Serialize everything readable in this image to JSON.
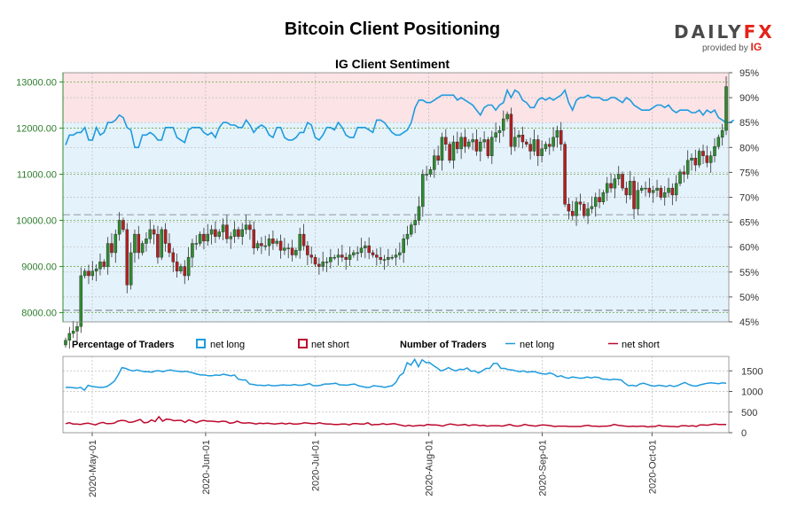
{
  "title": "Bitcoin Client Positioning",
  "brand": {
    "name_a": "DAILY",
    "name_b": "FX",
    "sub": "provided by",
    "sub_mark": "IG"
  },
  "chart_data": [
    {
      "type": "candlestick",
      "title": "IG Client Sentiment",
      "ylim": [
        7800,
        13200
      ],
      "y_ticks": [
        "8000.00",
        "9000.00",
        "10000.00",
        "11000.00",
        "12000.00",
        "13000.00"
      ],
      "y_tick_values": [
        8000,
        9000,
        10000,
        11000,
        12000,
        13000
      ],
      "y2lim": [
        45,
        95
      ],
      "y2_ticks": [
        "45%",
        "50%",
        "55%",
        "60%",
        "65%",
        "70%",
        "75%",
        "80%",
        "85%",
        "90%",
        "95%"
      ],
      "y2_tick_values": [
        45,
        50,
        55,
        60,
        65,
        70,
        75,
        80,
        85,
        90,
        95
      ],
      "date_range": [
        "2020-04-23",
        "2020-10-22"
      ],
      "close": [
        7400,
        7550,
        7600,
        7700,
        8800,
        8900,
        8800,
        8900,
        8950,
        9100,
        9000,
        9500,
        9300,
        9700,
        10000,
        9800,
        8600,
        9300,
        9700,
        9300,
        9500,
        9600,
        9800,
        9700,
        9200,
        9800,
        9500,
        9300,
        9100,
        8900,
        9000,
        8800,
        9200,
        9500,
        9500,
        9700,
        9550,
        9700,
        9800,
        9650,
        9750,
        9900,
        9600,
        9650,
        9800,
        9650,
        9800,
        9900,
        9800,
        9400,
        9500,
        9450,
        9450,
        9600,
        9500,
        9550,
        9350,
        9400,
        9400,
        9250,
        9350,
        9700,
        9450,
        9250,
        9200,
        9050,
        9000,
        9100,
        9100,
        9200,
        9200,
        9250,
        9200,
        9150,
        9250,
        9300,
        9300,
        9400,
        9450,
        9300,
        9250,
        9200,
        9150,
        9150,
        9200,
        9200,
        9250,
        9300,
        9600,
        9700,
        9900,
        10000,
        10300,
        11000,
        11000,
        11100,
        11400,
        11300,
        11800,
        11650,
        11300,
        11700,
        11550,
        11800,
        11600,
        11700,
        11750,
        11500,
        11700,
        11750,
        11400,
        11800,
        11900,
        11950,
        12200,
        12300,
        11600,
        11800,
        11850,
        11700,
        11650,
        11500,
        11750,
        11400,
        11550,
        11650,
        11600,
        11800,
        11950,
        11650,
        10350,
        10200,
        10100,
        10400,
        10350,
        10100,
        10250,
        10300,
        10500,
        10400,
        10600,
        10800,
        10700,
        10900,
        11000,
        10700,
        10550,
        10850,
        10250,
        10650,
        10700,
        10700,
        10600,
        10650,
        10700,
        10500,
        10600,
        10700,
        10550,
        10800,
        11050,
        11000,
        11300,
        11350,
        11200,
        11500,
        11400,
        11250,
        11400,
        11600,
        11800,
        11950,
        12900
      ],
      "net_long_pct": [
        80.5,
        82.5,
        82.5,
        83,
        83,
        84,
        81.5,
        81.5,
        84,
        82.5,
        83,
        85,
        85,
        85.5,
        86.5,
        86,
        84,
        83.5,
        80,
        80,
        82.5,
        82.5,
        83,
        82.5,
        81.5,
        81.5,
        84,
        84,
        84,
        82,
        81.5,
        81,
        83.5,
        84,
        84,
        84,
        83,
        82.5,
        83,
        82,
        84,
        85,
        85,
        84.5,
        84.5,
        84,
        84,
        85.5,
        84.5,
        83,
        84,
        84.5,
        84,
        82.5,
        82,
        84,
        84,
        82,
        81.5,
        81.5,
        82,
        83,
        83,
        85,
        84.5,
        82,
        81.5,
        82.5,
        84,
        84,
        83.5,
        85,
        84,
        82.5,
        82,
        82,
        84,
        84,
        84,
        83.5,
        83,
        85.5,
        85.5,
        85,
        84,
        83,
        82.5,
        82.5,
        83,
        83.5,
        85,
        88,
        89.5,
        89.5,
        89,
        89,
        89.5,
        90,
        90.5,
        90.5,
        90.5,
        90.5,
        89.5,
        90,
        89.5,
        89,
        88.5,
        87.5,
        86.5,
        88,
        88.5,
        88.5,
        87.5,
        88.5,
        89,
        91.5,
        90,
        91.5,
        91,
        89.5,
        89,
        88,
        88,
        89.5,
        90,
        89.5,
        90,
        89.5,
        90,
        90.5,
        91.5,
        89,
        87.5,
        89.5,
        90,
        90,
        90.5,
        90,
        90,
        90,
        89.5,
        89.5,
        90,
        90,
        89.5,
        89,
        90,
        89.5,
        88.5,
        88,
        87.5,
        87.5,
        87.5,
        88,
        88.5,
        88.5,
        88,
        88.5,
        87.5,
        87,
        87.5,
        87.5,
        87.5,
        87,
        87,
        87.5,
        86.5,
        87.5,
        87,
        87.5,
        86,
        85.5,
        85,
        85,
        85.5
      ],
      "annotations": {
        "dashed_line_pct": 66.5,
        "dashed_line_price": 8050,
        "shading_split_pct": 85
      }
    },
    {
      "type": "line",
      "legend_left_title": "Percentage of Traders",
      "legend_right_title": "Number of Traders",
      "legend_labels": [
        "net long",
        "net short",
        "net long",
        "net short"
      ],
      "ylim": [
        0,
        1850
      ],
      "y_ticks": [
        "0",
        "500",
        "1000",
        "1500"
      ],
      "y_tick_values": [
        0,
        500,
        1000,
        1500
      ],
      "x_ticks": [
        "2020-May-01",
        "2020-Jun-01",
        "2020-Jul-01",
        "2020-Aug-01",
        "2020-Sep-01",
        "2020-Oct-01"
      ],
      "x_tick_dates": [
        "2020-05-01",
        "2020-06-01",
        "2020-07-01",
        "2020-08-01",
        "2020-09-01",
        "2020-10-01"
      ],
      "series": [
        {
          "name": "net long",
          "color": "#1f9bde",
          "values": [
            1100,
            1100,
            1090,
            1080,
            1100,
            1030,
            1150,
            1120,
            1110,
            1100,
            1100,
            1120,
            1180,
            1250,
            1400,
            1580,
            1560,
            1520,
            1500,
            1520,
            1500,
            1480,
            1480,
            1470,
            1500,
            1500,
            1480,
            1510,
            1520,
            1500,
            1490,
            1480,
            1490,
            1470,
            1450,
            1420,
            1400,
            1400,
            1380,
            1380,
            1400,
            1390,
            1420,
            1400,
            1380,
            1400,
            1300,
            1280,
            1280,
            1180,
            1170,
            1150,
            1150,
            1140,
            1160,
            1140,
            1140,
            1150,
            1160,
            1150,
            1150,
            1170,
            1150,
            1150,
            1170,
            1190,
            1140,
            1140,
            1150,
            1180,
            1180,
            1190,
            1200,
            1160,
            1160,
            1150,
            1170,
            1180,
            1140,
            1120,
            1100,
            1100,
            1140,
            1130,
            1120,
            1100,
            1120,
            1140,
            1220,
            1380,
            1450,
            1700,
            1640,
            1780,
            1600,
            1770,
            1700,
            1700,
            1630,
            1570,
            1500,
            1530,
            1580,
            1530,
            1500,
            1540,
            1530,
            1570,
            1490,
            1500,
            1450,
            1500,
            1560,
            1560,
            1680,
            1680,
            1560,
            1560,
            1530,
            1520,
            1500,
            1480,
            1500,
            1470,
            1480,
            1480,
            1450,
            1430,
            1420,
            1450,
            1420,
            1360,
            1380,
            1340,
            1320,
            1350,
            1340,
            1320,
            1330,
            1350,
            1330,
            1350,
            1340,
            1300,
            1300,
            1280,
            1300,
            1290,
            1280,
            1200,
            1140,
            1150,
            1130,
            1180,
            1200,
            1170,
            1140,
            1130,
            1150,
            1140,
            1120,
            1150,
            1120,
            1140,
            1180,
            1220,
            1170,
            1140,
            1130,
            1160,
            1180,
            1200,
            1210,
            1200,
            1190,
            1210,
            1200
          ]
        },
        {
          "name": "net short",
          "color": "#bd0a2e",
          "values": [
            220,
            240,
            210,
            210,
            200,
            220,
            230,
            210,
            190,
            230,
            250,
            220,
            220,
            230,
            280,
            300,
            290,
            250,
            260,
            290,
            320,
            240,
            250,
            310,
            270,
            390,
            280,
            330,
            320,
            290,
            300,
            300,
            250,
            310,
            280,
            240,
            280,
            300,
            280,
            280,
            270,
            260,
            280,
            270,
            230,
            240,
            280,
            240,
            230,
            240,
            230,
            210,
            230,
            220,
            230,
            220,
            210,
            220,
            230,
            210,
            230,
            210,
            210,
            220,
            240,
            230,
            220,
            220,
            240,
            220,
            210,
            210,
            200,
            200,
            210,
            210,
            190,
            220,
            220,
            210,
            210,
            240,
            190,
            200,
            200,
            220,
            200,
            210,
            220,
            200,
            180,
            160,
            180,
            160,
            170,
            180,
            170,
            200,
            190,
            190,
            180,
            160,
            190,
            210,
            200,
            180,
            190,
            200,
            170,
            190,
            190,
            170,
            180,
            160,
            170,
            170,
            170,
            160,
            180,
            200,
            170,
            160,
            170,
            200,
            180,
            170,
            160,
            180,
            190,
            180,
            170,
            150,
            160,
            160,
            160,
            150,
            150,
            150,
            150,
            170,
            180,
            160,
            160,
            150,
            160,
            160,
            170,
            200,
            180,
            170,
            160,
            150,
            160,
            150,
            160,
            160,
            140,
            150,
            150,
            180,
            160,
            160,
            150,
            150,
            140,
            170,
            170,
            160,
            170,
            150,
            190,
            190,
            180,
            200,
            210,
            200,
            200,
            200
          ]
        }
      ]
    }
  ]
}
